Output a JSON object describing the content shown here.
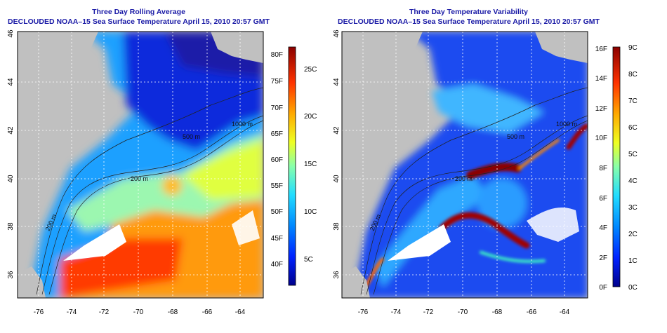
{
  "left_panel": {
    "title": "Three Day Rolling Average",
    "subtitle": "DECLOUDED NOAA–15 Sea Surface Temperature April 15, 2010 20:57 GMT",
    "lat_ticks": [
      "36",
      "38",
      "40",
      "42",
      "44",
      "46"
    ],
    "lon_ticks": [
      "-76",
      "-74",
      "-72",
      "-70",
      "-68",
      "-66",
      "-64"
    ],
    "contour_labels": [
      "200 m",
      "200 m",
      "1000 m",
      "500 m"
    ],
    "colorbar": {
      "f_ticks": [
        "40F",
        "45F",
        "50F",
        "55F",
        "60F",
        "65F",
        "70F",
        "75F",
        "80F"
      ],
      "c_ticks": [
        "5C",
        "10C",
        "15C",
        "20C",
        "25C"
      ]
    }
  },
  "right_panel": {
    "title": "Three Day Temperature Variability",
    "subtitle": "DECLOUDED NOAA–15 Sea Surface Temperature April 15, 2010 20:57 GMT",
    "lat_ticks": [
      "36",
      "38",
      "40",
      "42",
      "44",
      "46"
    ],
    "lon_ticks": [
      "-76",
      "-74",
      "-72",
      "-70",
      "-68",
      "-66",
      "-64"
    ],
    "contour_labels": [
      "200 m",
      "200 m",
      "1000 m",
      "500 m"
    ],
    "colorbar": {
      "f_ticks": [
        "0F",
        "2F",
        "4F",
        "6F",
        "8F",
        "10F",
        "12F",
        "14F",
        "16F"
      ],
      "c_ticks": [
        "0C",
        "1C",
        "2C",
        "3C",
        "4C",
        "5C",
        "6C",
        "7C",
        "8C",
        "9C"
      ]
    }
  },
  "colors": {
    "title": "#1a1aa6",
    "land": "#c0c0c0",
    "cloud": "#ffffff"
  }
}
